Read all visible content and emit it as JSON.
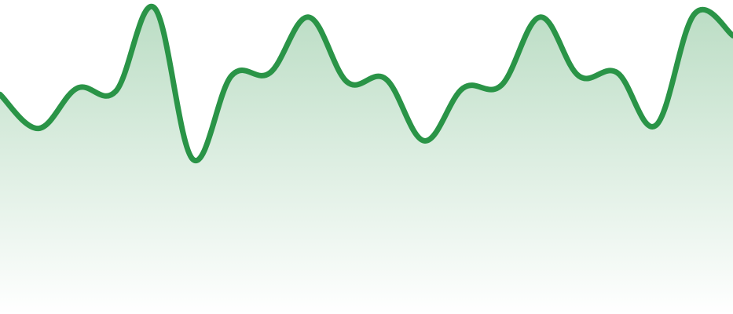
{
  "chart_data": {
    "type": "area",
    "title": "",
    "xlabel": "",
    "ylabel": "",
    "grid": false,
    "legend": "none",
    "line_color": "#2a9447",
    "fill_color": "#2a9447",
    "x": [
      0,
      1,
      2,
      3,
      4,
      5,
      6,
      7,
      8,
      9,
      10,
      11,
      12,
      13,
      14,
      15,
      16,
      17,
      18,
      19
    ],
    "series": [
      {
        "values": [
          7.1,
          6.0,
          7.3,
          7.2,
          9.9,
          5.0,
          7.7,
          7.8,
          9.6,
          7.5,
          7.6,
          5.6,
          7.3,
          7.4,
          9.6,
          7.7,
          7.8,
          6.1,
          9.7,
          9.0
        ]
      }
    ],
    "ylim": [
      0,
      10
    ]
  }
}
